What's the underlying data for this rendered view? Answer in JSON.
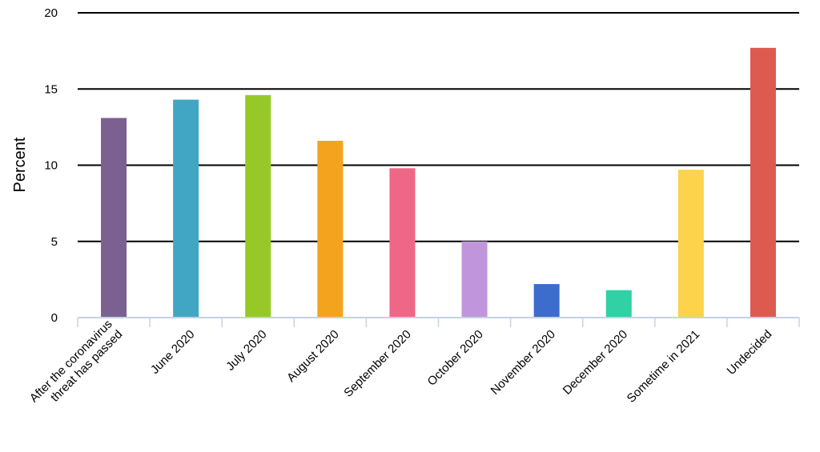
{
  "chart_data": {
    "type": "bar",
    "ylabel": "Percent",
    "xlabel": "",
    "ylim": [
      0,
      20
    ],
    "yticks": [
      0,
      5,
      10,
      15,
      20
    ],
    "grid": true,
    "legend": "none",
    "categories": [
      "After the coronavirus threat has passed",
      "June 2020",
      "July 2020",
      "August 2020",
      "September 2020",
      "October 2020",
      "November 2020",
      "December 2020",
      "Sometime in 2021",
      "Undecided"
    ],
    "category_lines": [
      [
        "After the coronavirus",
        "threat has passed"
      ],
      [
        "June 2020"
      ],
      [
        "July 2020"
      ],
      [
        "August 2020"
      ],
      [
        "September 2020"
      ],
      [
        "October 2020"
      ],
      [
        "November 2020"
      ],
      [
        "December 2020"
      ],
      [
        "Sometime in 2021"
      ],
      [
        "Undecided"
      ]
    ],
    "values": [
      13.1,
      14.3,
      14.6,
      11.6,
      9.8,
      5.0,
      2.2,
      1.8,
      9.7,
      17.7
    ],
    "colors": [
      "#7b6190",
      "#41a6c3",
      "#96c928",
      "#f4a31e",
      "#ef6787",
      "#c095dc",
      "#3c6ccc",
      "#2fd1a5",
      "#fcd34a",
      "#dc5a50"
    ]
  }
}
